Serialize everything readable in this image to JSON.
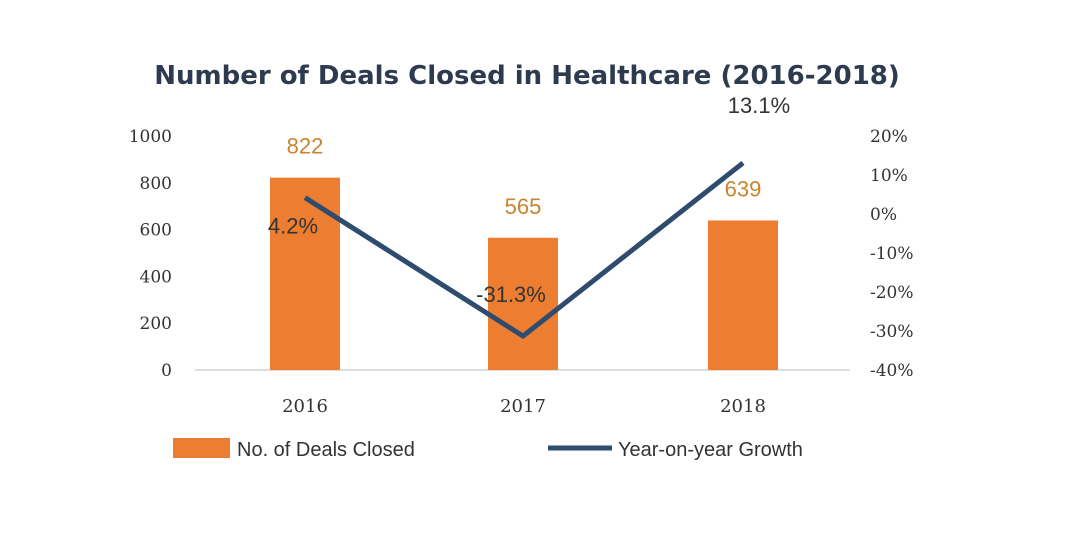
{
  "chart_data": {
    "type": "bar",
    "title": "Number of Deals Closed in Healthcare (2016-2018)",
    "categories": [
      "2016",
      "2017",
      "2018"
    ],
    "series": [
      {
        "name": "No. of Deals Closed",
        "type": "bar",
        "axis": "left",
        "values": [
          822,
          565,
          639
        ],
        "labels": [
          "822",
          "565",
          "639"
        ],
        "color": "#ed7d31"
      },
      {
        "name": "Year-on-year Growth",
        "type": "line",
        "axis": "right",
        "values": [
          4.2,
          -31.3,
          13.1
        ],
        "labels": [
          "4.2%",
          "-31.3%",
          "13.1%"
        ],
        "color": "#2f4b6e"
      }
    ],
    "y_left": {
      "ylim": [
        0,
        1000
      ],
      "ticks": [
        "0",
        "200",
        "400",
        "600",
        "800",
        "1000"
      ]
    },
    "y_right": {
      "ylim": [
        -40,
        20
      ],
      "ticks": [
        "-40%",
        "-30%",
        "-20%",
        "-10%",
        "0%",
        "10%",
        "20%"
      ]
    },
    "grid": false,
    "legend_position": "bottom",
    "bar_label_color": "#c9842f"
  }
}
